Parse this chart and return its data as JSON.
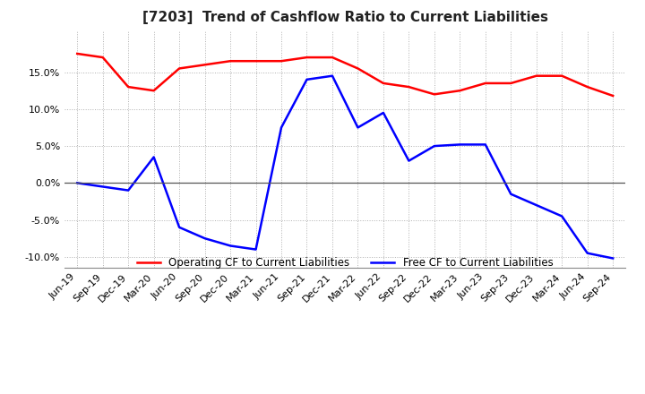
{
  "title": "[7203]  Trend of Cashflow Ratio to Current Liabilities",
  "x_labels": [
    "Jun-19",
    "Sep-19",
    "Dec-19",
    "Mar-20",
    "Jun-20",
    "Sep-20",
    "Dec-20",
    "Mar-21",
    "Jun-21",
    "Sep-21",
    "Dec-21",
    "Mar-22",
    "Jun-22",
    "Sep-22",
    "Dec-22",
    "Mar-23",
    "Jun-23",
    "Sep-23",
    "Dec-23",
    "Mar-24",
    "Jun-24",
    "Sep-24"
  ],
  "operating_cf": [
    0.175,
    0.17,
    0.13,
    0.125,
    0.155,
    0.16,
    0.165,
    0.165,
    0.165,
    0.17,
    0.17,
    0.155,
    0.135,
    0.13,
    0.12,
    0.125,
    0.135,
    0.135,
    0.145,
    0.145,
    0.13,
    0.118
  ],
  "free_cf": [
    0.0,
    -0.005,
    -0.01,
    0.035,
    -0.06,
    -0.075,
    -0.085,
    -0.09,
    0.075,
    0.14,
    0.145,
    0.075,
    0.095,
    0.03,
    0.05,
    0.052,
    0.052,
    -0.015,
    -0.03,
    -0.045,
    -0.095,
    -0.102
  ],
  "ylim": [
    -0.115,
    0.205
  ],
  "yticks": [
    -0.1,
    -0.05,
    0.0,
    0.05,
    0.1,
    0.15
  ],
  "operating_color": "#ff0000",
  "free_color": "#0000ff",
  "grid_color": "#b0b0b0",
  "background_color": "#ffffff",
  "legend_labels": [
    "Operating CF to Current Liabilities",
    "Free CF to Current Liabilities"
  ],
  "title_fontsize": 11,
  "tick_fontsize": 8,
  "ytick_fontsize": 8
}
